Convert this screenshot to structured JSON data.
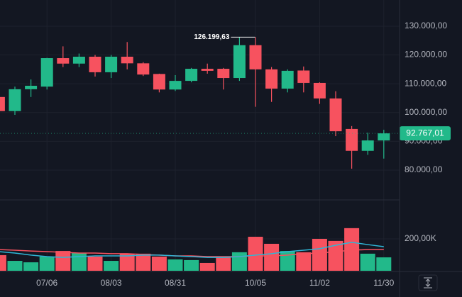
{
  "chart_data": {
    "type": "candlestick",
    "categories": [
      null,
      null,
      null,
      "07/06",
      null,
      null,
      null,
      "08/03",
      null,
      null,
      null,
      "08/31",
      null,
      null,
      null,
      null,
      "10/05",
      null,
      null,
      null,
      "11/02",
      null,
      null,
      null,
      "11/30"
    ],
    "open": [
      105400,
      100500,
      108100,
      109000,
      118900,
      117000,
      119400,
      114000,
      119400,
      117100,
      113400,
      108000,
      111000,
      115200,
      115200,
      112000,
      123400,
      115000,
      108300,
      114600,
      110300,
      104900,
      94300,
      86700,
      90300
    ],
    "high": [
      106000,
      109000,
      111500,
      119000,
      123000,
      120500,
      120000,
      120000,
      124500,
      117500,
      113500,
      113000,
      115500,
      117000,
      115500,
      126199.63,
      126200,
      115800,
      115000,
      116000,
      110500,
      107400,
      95300,
      93000,
      94000
    ],
    "low": [
      100000,
      99200,
      105400,
      108000,
      115800,
      115800,
      112500,
      112000,
      115000,
      112700,
      107000,
      107500,
      110500,
      113500,
      108000,
      111000,
      102000,
      103700,
      107000,
      107000,
      103000,
      91800,
      80500,
      85300,
      84000
    ],
    "close": [
      100500,
      108100,
      109300,
      118900,
      117000,
      119400,
      114000,
      119400,
      117100,
      113200,
      108000,
      111000,
      115200,
      114500,
      112000,
      123400,
      115000,
      108300,
      114500,
      110300,
      104900,
      93500,
      86700,
      90300,
      92767.01
    ],
    "up_color": "#22b98a",
    "down_color": "#f7525f",
    "ylim": [
      69650,
      139100
    ],
    "yticks": [
      {
        "value": 80000,
        "label": "80.000,00"
      },
      {
        "value": 90000,
        "label": "90.000,00"
      },
      {
        "value": 100000,
        "label": "100.000,00"
      },
      {
        "value": 110000,
        "label": "110.000,00"
      },
      {
        "value": 120000,
        "label": "120.000,00"
      },
      {
        "value": 130000,
        "label": "130.000,00"
      }
    ],
    "high_annotation": {
      "value": 126199.63,
      "label": "126.199,63"
    },
    "last_price": {
      "value": 92767.01,
      "label": "92.767,01"
    },
    "grid": true,
    "volume": [
      98,
      62,
      53,
      89,
      124,
      111,
      89,
      62,
      107,
      107,
      89,
      71,
      67,
      49,
      89,
      116,
      213,
      169,
      124,
      116,
      200,
      187,
      267,
      107,
      84
    ],
    "volume_ylim": [
      0,
      444
    ],
    "volume_yticks": [
      {
        "value": 200,
        "label": "200,00K"
      }
    ],
    "volume_averages": [
      {
        "color": "#f7525f",
        "values": [
          133,
          129,
          124,
          120,
          116,
          111,
          111,
          107,
          107,
          102,
          98,
          93,
          93,
          89,
          89,
          89,
          93,
          93,
          98,
          107,
          111,
          120,
          129,
          133,
          133
        ]
      },
      {
        "color": "#2fb6d6",
        "values": [
          120,
          111,
          98,
          89,
          84,
          89,
          93,
          93,
          93,
          98,
          98,
          93,
          89,
          84,
          84,
          89,
          98,
          107,
          120,
          129,
          138,
          160,
          178,
          164,
          151
        ]
      }
    ]
  }
}
